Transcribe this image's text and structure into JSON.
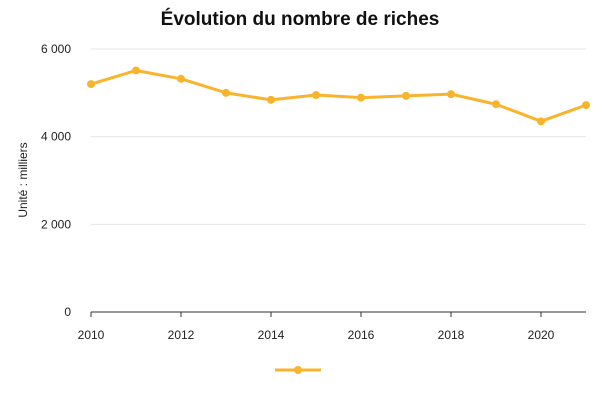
{
  "chart_data": {
    "type": "line",
    "title": "Évolution du nombre de riches",
    "ylabel": "Unité : milliers",
    "xlabel": "",
    "x": [
      2010,
      2011,
      2012,
      2013,
      2014,
      2015,
      2016,
      2017,
      2018,
      2019,
      2020,
      2021
    ],
    "series": [
      {
        "values": [
          5200,
          5510,
          5320,
          5000,
          4840,
          4950,
          4890,
          4930,
          4970,
          4740,
          4350,
          4720
        ]
      }
    ],
    "xlim": [
      2010,
      2021
    ],
    "ylim": [
      0,
      6000
    ],
    "x_ticks": [
      "2010",
      "2012",
      "2014",
      "2016",
      "2018",
      "2020"
    ],
    "y_ticks": [
      "0",
      "2 000",
      "4 000",
      "6 000"
    ],
    "grid": "horizontal",
    "legend": "bottom-center",
    "colors": {
      "series": "#F9B42D"
    }
  }
}
